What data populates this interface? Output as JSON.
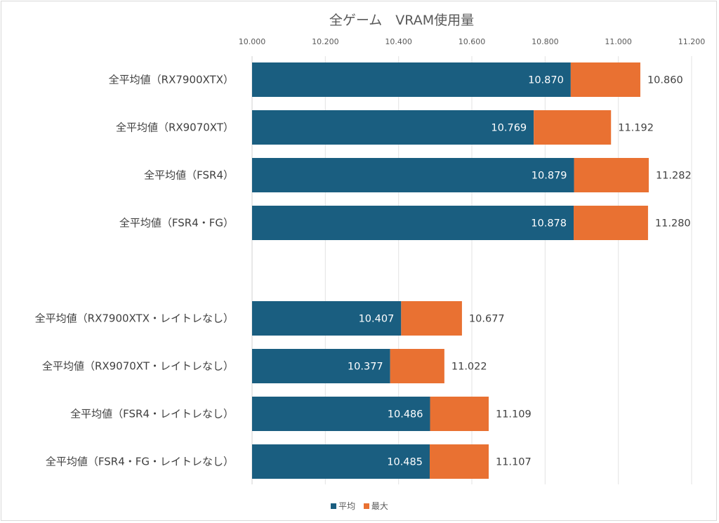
{
  "chart_data": {
    "type": "bar",
    "orientation": "horizontal",
    "stacked": true,
    "title": "全ゲーム　VRAM使用量",
    "xlabel": "",
    "ylabel": "",
    "xlim": [
      10.0,
      11.2
    ],
    "x_ticks": [
      "10.000",
      "10.200",
      "10.400",
      "10.600",
      "10.800",
      "11.000",
      "11.200"
    ],
    "x_tick_values": [
      10.0,
      10.2,
      10.4,
      10.6,
      10.8,
      11.0,
      11.2
    ],
    "grid": true,
    "legend_position": "bottom",
    "categories": [
      "全平均値（RX7900XTX）",
      "全平均値（RX9070XT）",
      "全平均値（FSR4）",
      "全平均値（FSR4・FG）",
      "",
      "全平均値（RX7900XTX・レイトレなし）",
      "全平均値（RX9070XT・レイトレなし）",
      "全平均値（FSR4・レイトレなし）",
      "全平均値（FSR4・FG・レイトレなし）"
    ],
    "series": [
      {
        "name": "平均",
        "color": "#1a5e80",
        "values": [
          10.87,
          10.769,
          10.879,
          10.878,
          null,
          10.407,
          10.377,
          10.486,
          10.485
        ],
        "labels": [
          "10.870",
          "10.769",
          "10.879",
          "10.878",
          "",
          "10.407",
          "10.377",
          "10.486",
          "10.485"
        ]
      },
      {
        "name": "最大",
        "color": "#e97132",
        "values": [
          10.86,
          11.192,
          11.282,
          11.28,
          null,
          10.677,
          11.022,
          11.109,
          11.107
        ],
        "labels": [
          "10.860",
          "11.192",
          "11.282",
          "11.280",
          "",
          "10.677",
          "11.022",
          "11.109",
          "11.107"
        ],
        "visual_bar_end": [
          11.06,
          10.98,
          11.083,
          11.081,
          null,
          10.573,
          10.525,
          10.646,
          10.646
        ]
      }
    ]
  },
  "legend": {
    "items": [
      {
        "label": "平均",
        "color": "#1a5e80"
      },
      {
        "label": "最大",
        "color": "#e97132"
      }
    ]
  }
}
